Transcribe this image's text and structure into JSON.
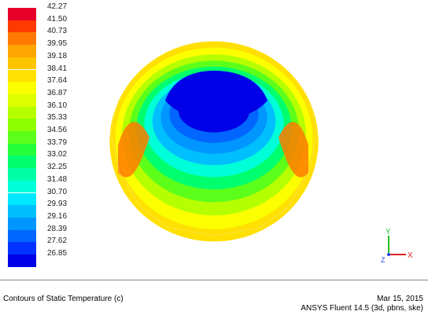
{
  "legend": {
    "levels": [
      "42.27",
      "41.50",
      "40.73",
      "39.95",
      "39.18",
      "38.41",
      "37.64",
      "36.87",
      "36.10",
      "35.33",
      "34.56",
      "33.79",
      "33.02",
      "32.25",
      "31.48",
      "30.70",
      "29.93",
      "29.16",
      "28.39",
      "27.62",
      "26.85"
    ],
    "colors": [
      "#e8002a",
      "#ff3a00",
      "#ff7a00",
      "#ffa500",
      "#ffc400",
      "#ffe000",
      "#fbff00",
      "#dcff00",
      "#b6ff00",
      "#8cff00",
      "#5cff1a",
      "#25ff3a",
      "#00ff6e",
      "#00ffa6",
      "#00ffd8",
      "#00e8ff",
      "#00bfff",
      "#0096ff",
      "#0066ff",
      "#0033ff",
      "#0000e8"
    ]
  },
  "footer": {
    "caption": "Contours of Static Temperature (c)",
    "date": "Mar 15, 2015",
    "software": "ANSYS Fluent 14.5 (3d, pbns, ske)"
  },
  "axes": {
    "x": "X",
    "y": "Y",
    "z": "Z"
  }
}
